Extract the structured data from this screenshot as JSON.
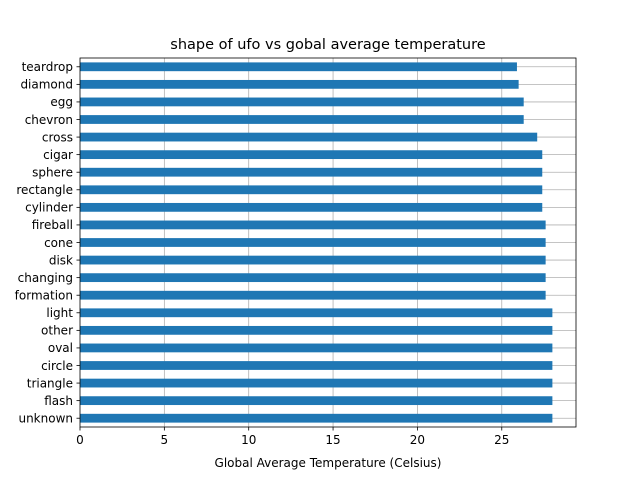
{
  "chart_data": {
    "type": "bar",
    "orientation": "horizontal",
    "title": "shape of ufo vs gobal average temperature",
    "xlabel": "Global Average Temperature (Celsius)",
    "ylabel": "",
    "categories": [
      "teardrop",
      "diamond",
      "egg",
      "chevron",
      "cross",
      "cigar",
      "sphere",
      "rectangle",
      "cylinder",
      "fireball",
      "cone",
      "disk",
      "changing",
      "formation",
      "light",
      "other",
      "oval",
      "circle",
      "triangle",
      "flash",
      "unknown"
    ],
    "values": [
      25.9,
      26.0,
      26.3,
      26.3,
      27.1,
      27.4,
      27.4,
      27.4,
      27.4,
      27.6,
      27.6,
      27.6,
      27.6,
      27.6,
      28.0,
      28.0,
      28.0,
      28.0,
      28.0,
      28.0,
      28.0
    ],
    "xlim": [
      0,
      29.4
    ],
    "xticks": [
      0,
      5,
      10,
      15,
      20,
      25
    ],
    "grid": true,
    "bar_color": "#1f77b4",
    "grid_color": "#b0b0b0"
  }
}
